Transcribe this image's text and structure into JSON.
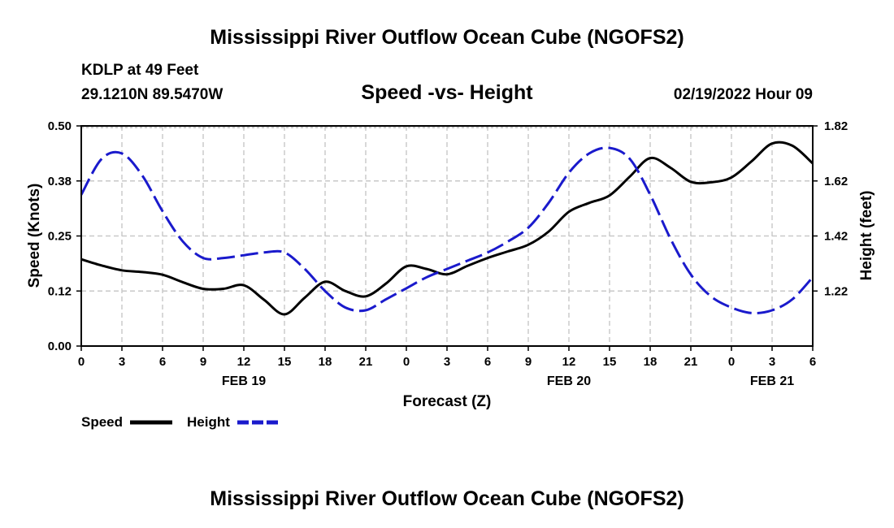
{
  "page": {
    "title_top": "Mississippi River Outflow Ocean Cube (NGOFS2)",
    "title_bottom": "Mississippi River Outflow Ocean Cube (NGOFS2)",
    "station": "KDLP at 49 Feet",
    "coords": "29.1210N  89.5470W",
    "datetime": "02/19/2022 Hour 09"
  },
  "chart_data": {
    "type": "line",
    "title": "Speed -vs- Height",
    "xlabel": "Forecast (Z)",
    "ylabel": "Speed (Knots)",
    "y2label": "Height (feet)",
    "x_range": [
      0,
      54
    ],
    "ylim": [
      0.0,
      0.5
    ],
    "y2lim": [
      1.02,
      1.82
    ],
    "x_ticks": [
      0,
      3,
      6,
      9,
      12,
      15,
      18,
      21,
      24,
      27,
      30,
      33,
      36,
      39,
      42,
      45,
      48,
      51,
      54
    ],
    "x_tick_labels": [
      "0",
      "3",
      "6",
      "9",
      "12",
      "15",
      "18",
      "21",
      "0",
      "3",
      "6",
      "9",
      "12",
      "15",
      "18",
      "21",
      "0",
      "3",
      "6"
    ],
    "date_labels": [
      {
        "x": 12,
        "label": "FEB 19"
      },
      {
        "x": 36,
        "label": "FEB 20"
      },
      {
        "x": 51,
        "label": "FEB 21"
      }
    ],
    "y_ticks": [
      0.0,
      0.125,
      0.25,
      0.375,
      0.5
    ],
    "y_tick_labels": [
      "0.00",
      "0.12",
      "0.25",
      "0.38",
      "0.50"
    ],
    "y2_ticks": [
      1.22,
      1.42,
      1.62,
      1.82
    ],
    "y2_tick_labels": [
      "1.22",
      "1.42",
      "1.62",
      "1.82"
    ],
    "grid": true,
    "legend_position": "bottom-left",
    "series": [
      {
        "name": "Speed",
        "axis": "left",
        "color": "#000000",
        "dash": "solid",
        "x": [
          0,
          1.5,
          3,
          4.5,
          6,
          7.5,
          9,
          10.5,
          12,
          13.5,
          15,
          16.5,
          18,
          19.5,
          21,
          22.5,
          24,
          25.5,
          27,
          28.5,
          30,
          31.5,
          33,
          34.5,
          36,
          37.5,
          39,
          40.5,
          42,
          43.5,
          45,
          46.5,
          48,
          49.5,
          51,
          52.5,
          54
        ],
        "values": [
          0.197,
          0.183,
          0.172,
          0.168,
          0.162,
          0.145,
          0.13,
          0.13,
          0.138,
          0.105,
          0.072,
          0.11,
          0.146,
          0.125,
          0.113,
          0.142,
          0.181,
          0.175,
          0.163,
          0.182,
          0.2,
          0.215,
          0.23,
          0.26,
          0.305,
          0.325,
          0.342,
          0.385,
          0.427,
          0.405,
          0.373,
          0.372,
          0.383,
          0.42,
          0.46,
          0.455,
          0.415
        ]
      },
      {
        "name": "Height",
        "axis": "right",
        "color": "#1a1acc",
        "dash": "dashed",
        "x": [
          0,
          1.5,
          3,
          4.5,
          6,
          7.5,
          9,
          10.5,
          12,
          13.5,
          15,
          16.5,
          18,
          19.5,
          21,
          22.5,
          24,
          25.5,
          27,
          28.5,
          30,
          31.5,
          33,
          34.5,
          36,
          37.5,
          39,
          40.5,
          42,
          43.5,
          45,
          46.5,
          48,
          49.5,
          51,
          52.5,
          54
        ],
        "values": [
          1.57,
          1.7,
          1.72,
          1.64,
          1.51,
          1.4,
          1.34,
          1.34,
          1.35,
          1.36,
          1.36,
          1.3,
          1.22,
          1.16,
          1.15,
          1.19,
          1.23,
          1.27,
          1.3,
          1.33,
          1.36,
          1.4,
          1.45,
          1.54,
          1.65,
          1.72,
          1.74,
          1.7,
          1.57,
          1.41,
          1.28,
          1.2,
          1.16,
          1.14,
          1.15,
          1.19,
          1.27
        ]
      }
    ]
  }
}
